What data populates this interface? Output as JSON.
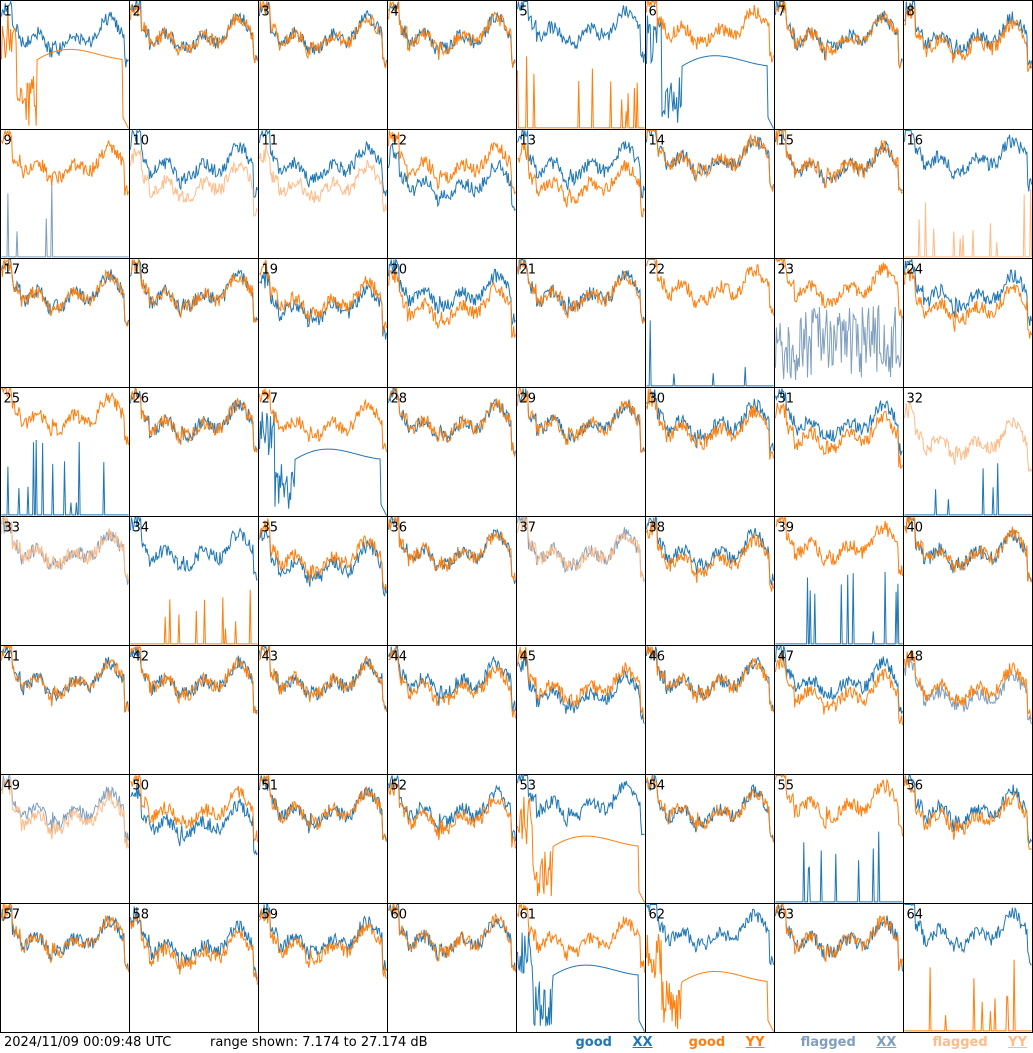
{
  "footer": {
    "timestamp": "2024/11/09 00:09:48 UTC",
    "range": "range shown: 7.174 to 27.174 dB"
  },
  "legend": [
    {
      "label": "good ",
      "key": "XX",
      "color": "#1f77b4"
    },
    {
      "label": "good ",
      "key": "YY",
      "color": "#ff7f0e"
    },
    {
      "label": "flagged ",
      "key": "XX",
      "color": "#7f9fbf"
    },
    {
      "label": "flagged ",
      "key": "YY",
      "color": "#ffbb88"
    }
  ],
  "colors": {
    "good_xx": "#1f77b4",
    "good_yy": "#ff7f0e",
    "flagged_xx": "#7f9fbf",
    "flagged_yy": "#ffbb88"
  },
  "chart_data": {
    "type": "line",
    "grid": "8x8 small multiples",
    "ylim": [
      7.174,
      27.174
    ],
    "yunit": "dB",
    "panels": [
      {
        "id": "1",
        "xx": "good",
        "yy": "good",
        "shape_xx": "normal",
        "shape_yy": "dip",
        "lvl_xx": 22,
        "lvl_yy": 19
      },
      {
        "id": "2",
        "xx": "good",
        "yy": "good",
        "shape_xx": "normal",
        "shape_yy": "normal",
        "lvl_xx": 22,
        "lvl_yy": 22
      },
      {
        "id": "3",
        "xx": "good",
        "yy": "good",
        "shape_xx": "normal",
        "shape_yy": "normal",
        "lvl_xx": 22,
        "lvl_yy": 22
      },
      {
        "id": "4",
        "xx": "good",
        "yy": "good",
        "shape_xx": "normal",
        "shape_yy": "normal",
        "lvl_xx": 22,
        "lvl_yy": 22
      },
      {
        "id": "5",
        "xx": "good",
        "yy": "good",
        "shape_xx": "normal",
        "shape_yy": "spikes",
        "lvl_xx": 23,
        "lvl_yy": 8
      },
      {
        "id": "6",
        "xx": "good",
        "yy": "good",
        "shape_xx": "dip",
        "shape_yy": "normal",
        "lvl_xx": 18,
        "lvl_yy": 23
      },
      {
        "id": "7",
        "xx": "good",
        "yy": "good",
        "shape_xx": "normal",
        "shape_yy": "normal",
        "lvl_xx": 22,
        "lvl_yy": 22
      },
      {
        "id": "8",
        "xx": "good",
        "yy": "good",
        "shape_xx": "normal",
        "shape_yy": "normal",
        "lvl_xx": 22,
        "lvl_yy": 21
      },
      {
        "id": "9",
        "xx": "flagged",
        "yy": "good",
        "shape_xx": "spikes",
        "shape_yy": "normal",
        "lvl_xx": 8,
        "lvl_yy": 22
      },
      {
        "id": "10",
        "xx": "good",
        "yy": "flagged",
        "shape_xx": "normal",
        "shape_yy": "normal",
        "lvl_xx": 22,
        "lvl_yy": 19
      },
      {
        "id": "11",
        "xx": "good",
        "yy": "flagged",
        "shape_xx": "normal",
        "shape_yy": "normal",
        "lvl_xx": 22,
        "lvl_yy": 19
      },
      {
        "id": "12",
        "xx": "good",
        "yy": "good",
        "shape_xx": "normal",
        "shape_yy": "normal",
        "lvl_xx": 19,
        "lvl_yy": 22
      },
      {
        "id": "13",
        "xx": "good",
        "yy": "good",
        "shape_xx": "normal",
        "shape_yy": "normal",
        "lvl_xx": 22,
        "lvl_yy": 19
      },
      {
        "id": "14",
        "xx": "good",
        "yy": "good",
        "shape_xx": "normal",
        "shape_yy": "normal",
        "lvl_xx": 23,
        "lvl_yy": 23
      },
      {
        "id": "15",
        "xx": "good",
        "yy": "good",
        "shape_xx": "normal",
        "shape_yy": "normal",
        "lvl_xx": 22,
        "lvl_yy": 22
      },
      {
        "id": "16",
        "xx": "good",
        "yy": "flagged",
        "shape_xx": "normal",
        "shape_yy": "spikes",
        "lvl_xx": 23,
        "lvl_yy": 8
      },
      {
        "id": "17",
        "xx": "good",
        "yy": "good",
        "shape_xx": "normal",
        "shape_yy": "normal",
        "lvl_xx": 22,
        "lvl_yy": 22
      },
      {
        "id": "18",
        "xx": "good",
        "yy": "good",
        "shape_xx": "normal",
        "shape_yy": "normal",
        "lvl_xx": 22,
        "lvl_yy": 22
      },
      {
        "id": "19",
        "xx": "good",
        "yy": "good",
        "shape_xx": "normal",
        "shape_yy": "normal",
        "lvl_xx": 20,
        "lvl_yy": 21
      },
      {
        "id": "20",
        "xx": "good",
        "yy": "good",
        "shape_xx": "normal",
        "shape_yy": "normal",
        "lvl_xx": 22,
        "lvl_yy": 20
      },
      {
        "id": "21",
        "xx": "good",
        "yy": "good",
        "shape_xx": "normal",
        "shape_yy": "normal",
        "lvl_xx": 22,
        "lvl_yy": 22
      },
      {
        "id": "22",
        "xx": "good",
        "yy": "good",
        "shape_xx": "spikes",
        "shape_yy": "normal",
        "lvl_xx": 8,
        "lvl_yy": 23
      },
      {
        "id": "23",
        "xx": "flagged",
        "yy": "good",
        "shape_xx": "noisy",
        "shape_yy": "normal",
        "lvl_xx": 14,
        "lvl_yy": 23
      },
      {
        "id": "24",
        "xx": "good",
        "yy": "good",
        "shape_xx": "normal",
        "shape_yy": "normal",
        "lvl_xx": 22,
        "lvl_yy": 20
      },
      {
        "id": "25",
        "xx": "good",
        "yy": "good",
        "shape_xx": "spikes",
        "shape_yy": "normal",
        "lvl_xx": 8,
        "lvl_yy": 23
      },
      {
        "id": "26",
        "xx": "good",
        "yy": "good",
        "shape_xx": "normal",
        "shape_yy": "normal",
        "lvl_xx": 22,
        "lvl_yy": 22
      },
      {
        "id": "27",
        "xx": "good",
        "yy": "good",
        "shape_xx": "dip",
        "shape_yy": "normal",
        "lvl_xx": 17,
        "lvl_yy": 22
      },
      {
        "id": "28",
        "xx": "good",
        "yy": "good",
        "shape_xx": "normal",
        "shape_yy": "normal",
        "lvl_xx": 22,
        "lvl_yy": 22
      },
      {
        "id": "29",
        "xx": "good",
        "yy": "good",
        "shape_xx": "normal",
        "shape_yy": "normal",
        "lvl_xx": 22,
        "lvl_yy": 22
      },
      {
        "id": "30",
        "xx": "good",
        "yy": "good",
        "shape_xx": "normal",
        "shape_yy": "normal",
        "lvl_xx": 22,
        "lvl_yy": 21
      },
      {
        "id": "31",
        "xx": "good",
        "yy": "good",
        "shape_xx": "normal",
        "shape_yy": "normal",
        "lvl_xx": 22,
        "lvl_yy": 20
      },
      {
        "id": "32",
        "xx": "good",
        "yy": "flagged",
        "shape_xx": "spikes",
        "shape_yy": "normal",
        "lvl_xx": 8,
        "lvl_yy": 19
      },
      {
        "id": "33",
        "xx": "flagged",
        "yy": "flagged",
        "shape_xx": "normal",
        "shape_yy": "normal",
        "lvl_xx": 22,
        "lvl_yy": 22
      },
      {
        "id": "34",
        "xx": "good",
        "yy": "good",
        "shape_xx": "normal",
        "shape_yy": "spikes",
        "lvl_xx": 22,
        "lvl_yy": 8
      },
      {
        "id": "35",
        "xx": "good",
        "yy": "good",
        "shape_xx": "normal",
        "shape_yy": "normal",
        "lvl_xx": 20,
        "lvl_yy": 21
      },
      {
        "id": "36",
        "xx": "good",
        "yy": "good",
        "shape_xx": "normal",
        "shape_yy": "normal",
        "lvl_xx": 22,
        "lvl_yy": 22
      },
      {
        "id": "37",
        "xx": "flagged",
        "yy": "flagged",
        "shape_xx": "normal",
        "shape_yy": "normal",
        "lvl_xx": 22,
        "lvl_yy": 22
      },
      {
        "id": "38",
        "xx": "good",
        "yy": "good",
        "shape_xx": "normal",
        "shape_yy": "normal",
        "lvl_xx": 22,
        "lvl_yy": 21
      },
      {
        "id": "39",
        "xx": "good",
        "yy": "good",
        "shape_xx": "spikes",
        "shape_yy": "normal",
        "lvl_xx": 8,
        "lvl_yy": 23
      },
      {
        "id": "40",
        "xx": "good",
        "yy": "good",
        "shape_xx": "normal",
        "shape_yy": "normal",
        "lvl_xx": 22,
        "lvl_yy": 22
      },
      {
        "id": "41",
        "xx": "good",
        "yy": "good",
        "shape_xx": "normal",
        "shape_yy": "normal",
        "lvl_xx": 22,
        "lvl_yy": 22
      },
      {
        "id": "42",
        "xx": "good",
        "yy": "good",
        "shape_xx": "normal",
        "shape_yy": "normal",
        "lvl_xx": 22,
        "lvl_yy": 22
      },
      {
        "id": "43",
        "xx": "good",
        "yy": "good",
        "shape_xx": "normal",
        "shape_yy": "normal",
        "lvl_xx": 22,
        "lvl_yy": 22
      },
      {
        "id": "44",
        "xx": "good",
        "yy": "good",
        "shape_xx": "normal",
        "shape_yy": "normal",
        "lvl_xx": 22,
        "lvl_yy": 21
      },
      {
        "id": "45",
        "xx": "good",
        "yy": "good",
        "shape_xx": "normal",
        "shape_yy": "normal",
        "lvl_xx": 20,
        "lvl_yy": 21
      },
      {
        "id": "46",
        "xx": "good",
        "yy": "good",
        "shape_xx": "normal",
        "shape_yy": "normal",
        "lvl_xx": 22,
        "lvl_yy": 22
      },
      {
        "id": "47",
        "xx": "good",
        "yy": "good",
        "shape_xx": "normal",
        "shape_yy": "normal",
        "lvl_xx": 22,
        "lvl_yy": 20
      },
      {
        "id": "48",
        "xx": "flagged",
        "yy": "good",
        "shape_xx": "normal",
        "shape_yy": "normal",
        "lvl_xx": 20,
        "lvl_yy": 21
      },
      {
        "id": "49",
        "xx": "flagged",
        "yy": "flagged",
        "shape_xx": "normal",
        "shape_yy": "normal",
        "lvl_xx": 22,
        "lvl_yy": 21
      },
      {
        "id": "50",
        "xx": "good",
        "yy": "good",
        "shape_xx": "normal",
        "shape_yy": "normal",
        "lvl_xx": 20,
        "lvl_yy": 22
      },
      {
        "id": "51",
        "xx": "good",
        "yy": "good",
        "shape_xx": "normal",
        "shape_yy": "normal",
        "lvl_xx": 22,
        "lvl_yy": 22
      },
      {
        "id": "52",
        "xx": "good",
        "yy": "good",
        "shape_xx": "normal",
        "shape_yy": "normal",
        "lvl_xx": 22,
        "lvl_yy": 21
      },
      {
        "id": "53",
        "xx": "good",
        "yy": "good",
        "shape_xx": "normal",
        "shape_yy": "dip",
        "lvl_xx": 23,
        "lvl_yy": 17
      },
      {
        "id": "54",
        "xx": "good",
        "yy": "good",
        "shape_xx": "normal",
        "shape_yy": "normal",
        "lvl_xx": 22,
        "lvl_yy": 22
      },
      {
        "id": "55",
        "xx": "good",
        "yy": "good",
        "shape_xx": "spikes",
        "shape_yy": "normal",
        "lvl_xx": 8,
        "lvl_yy": 23
      },
      {
        "id": "56",
        "xx": "good",
        "yy": "good",
        "shape_xx": "normal",
        "shape_yy": "normal",
        "lvl_xx": 22,
        "lvl_yy": 21
      },
      {
        "id": "57",
        "xx": "good",
        "yy": "good",
        "shape_xx": "normal",
        "shape_yy": "normal",
        "lvl_xx": 22,
        "lvl_yy": 22
      },
      {
        "id": "58",
        "xx": "good",
        "yy": "good",
        "shape_xx": "normal",
        "shape_yy": "normal",
        "lvl_xx": 21,
        "lvl_yy": 20
      },
      {
        "id": "59",
        "xx": "good",
        "yy": "good",
        "shape_xx": "normal",
        "shape_yy": "normal",
        "lvl_xx": 22,
        "lvl_yy": 21
      },
      {
        "id": "60",
        "xx": "good",
        "yy": "good",
        "shape_xx": "normal",
        "shape_yy": "normal",
        "lvl_xx": 22,
        "lvl_yy": 22
      },
      {
        "id": "61",
        "xx": "good",
        "yy": "good",
        "shape_xx": "dip",
        "shape_yy": "normal",
        "lvl_xx": 17,
        "lvl_yy": 22
      },
      {
        "id": "62",
        "xx": "good",
        "yy": "good",
        "shape_xx": "normal",
        "shape_yy": "dip",
        "lvl_xx": 23,
        "lvl_yy": 16
      },
      {
        "id": "63",
        "xx": "good",
        "yy": "good",
        "shape_xx": "normal",
        "shape_yy": "normal",
        "lvl_xx": 22,
        "lvl_yy": 22
      },
      {
        "id": "64",
        "xx": "good",
        "yy": "good",
        "shape_xx": "normal",
        "shape_yy": "spikes",
        "lvl_xx": 23,
        "lvl_yy": 8
      }
    ]
  }
}
